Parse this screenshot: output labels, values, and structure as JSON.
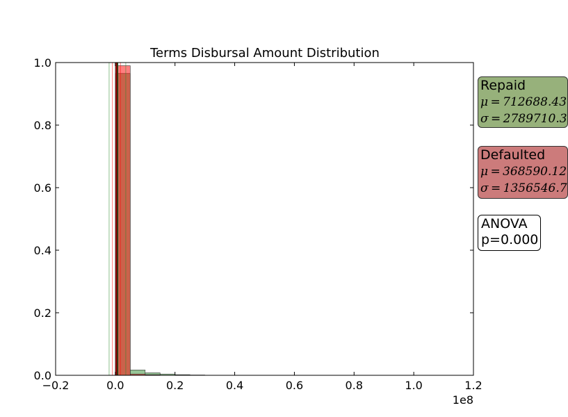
{
  "chart_data": {
    "type": "histogram",
    "title": "Terms Disbursal Amount Distribution",
    "xlabel": "",
    "ylabel": "",
    "x_offset_label": "1e8",
    "xlim": [
      -0.2,
      1.2
    ],
    "ylim": [
      0,
      1
    ],
    "x_ticks": [
      "−0.2",
      "0.0",
      "0.2",
      "0.4",
      "0.6",
      "0.8",
      "1.0",
      "1.2"
    ],
    "y_ticks": [
      "0.0",
      "0.2",
      "0.4",
      "0.6",
      "0.8",
      "1.0"
    ],
    "grid": false,
    "series": [
      {
        "name": "Repaid",
        "color": "#2e8b2e",
        "bins": [
          {
            "x0": 0.0,
            "x1": 0.05,
            "value": 0.965
          },
          {
            "x0": 0.05,
            "x1": 0.1,
            "value": 0.017
          },
          {
            "x0": 0.1,
            "x1": 0.15,
            "value": 0.008
          },
          {
            "x0": 0.15,
            "x1": 0.2,
            "value": 0.004
          },
          {
            "x0": 0.2,
            "x1": 0.25,
            "value": 0.002
          },
          {
            "x0": 0.25,
            "x1": 0.3,
            "value": 0.001
          }
        ],
        "mean_line": 0.00712688,
        "std_lines": [
          -0.0207702,
          0.035004
        ]
      },
      {
        "name": "Defaulted",
        "color": "#ff0000",
        "bins": [
          {
            "x0": 0.0,
            "x1": 0.05,
            "value": 0.99
          },
          {
            "x0": 0.05,
            "x1": 0.1,
            "value": 0.004
          },
          {
            "x0": 0.1,
            "x1": 0.15,
            "value": 0.002
          }
        ],
        "mean_line": 0.0036859,
        "std_lines": [
          -0.00988,
          0.01725
        ]
      }
    ]
  },
  "stats": {
    "repaid": {
      "label": "Repaid",
      "mu": "μ = 712688.43",
      "sigma": "σ = 2789710.3",
      "color": "#97b17b"
    },
    "defaulted": {
      "label": "Defaulted",
      "mu": "μ = 368590.12",
      "sigma": "σ = 1356546.7",
      "color": "#cc7b7b"
    },
    "anova": {
      "label": "ANOVA",
      "p": "p=0.000"
    }
  }
}
